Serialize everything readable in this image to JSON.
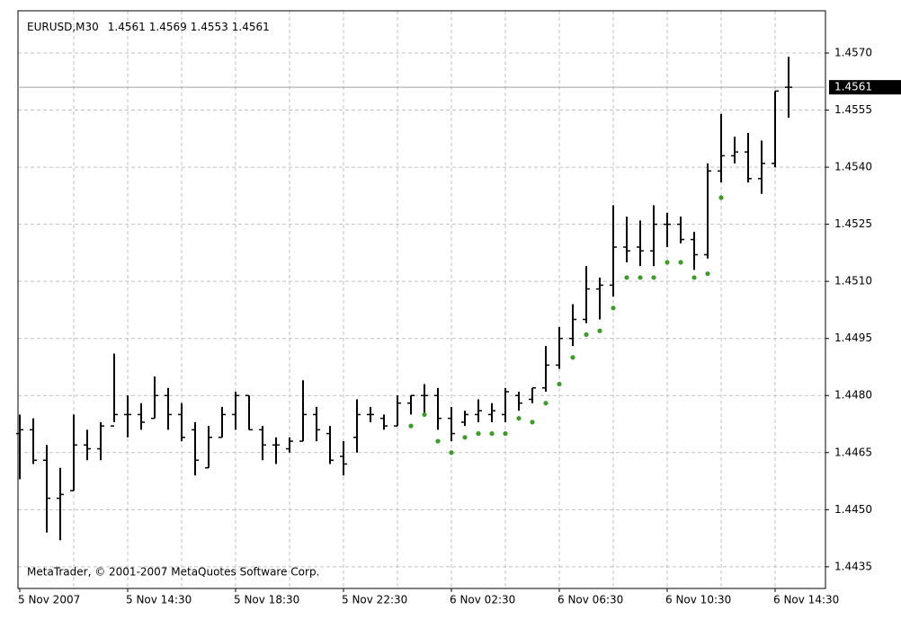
{
  "chart_data": {
    "type": "ohlc",
    "title": "EURUSD,M30",
    "header_values": [
      1.4561,
      1.4569,
      1.4553,
      1.4561
    ],
    "categories": [
      "5 Nov 2007",
      null,
      null,
      null,
      null,
      null,
      null,
      null,
      "5 Nov 14:30",
      null,
      null,
      null,
      null,
      null,
      null,
      null,
      "5 Nov 18:30",
      null,
      null,
      null,
      null,
      null,
      null,
      null,
      "5 Nov 22:30",
      null,
      null,
      null,
      null,
      null,
      null,
      null,
      "6 Nov 02:30",
      null,
      null,
      null,
      null,
      null,
      null,
      null,
      "6 Nov 06:30",
      null,
      null,
      null,
      null,
      null,
      null,
      null,
      "6 Nov 10:30",
      null,
      null,
      null,
      null,
      null,
      null,
      null,
      "6 Nov 14:30",
      null
    ],
    "open": [
      1.447,
      1.4471,
      1.4463,
      1.4453,
      1.4455,
      1.4467,
      1.4466,
      1.4472,
      1.4475,
      1.4475,
      1.4474,
      1.448,
      1.4475,
      1.4471,
      1.4461,
      1.4469,
      1.4475,
      1.448,
      1.4471,
      1.4467,
      1.4466,
      1.4468,
      1.4475,
      1.447,
      1.4464,
      1.4469,
      1.4475,
      1.4474,
      1.4472,
      1.4478,
      1.448,
      1.448,
      1.4474,
      1.4473,
      1.4475,
      1.4475,
      1.4475,
      1.448,
      1.4479,
      1.4482,
      1.4488,
      1.4495,
      1.45,
      1.4508,
      1.4509,
      1.4519,
      1.4519,
      1.4518,
      1.4525,
      1.4525,
      1.4521,
      1.4517,
      1.4539,
      1.4543,
      1.4544,
      1.4537,
      1.4541,
      1.4561
    ],
    "high": [
      1.4475,
      1.4474,
      1.4467,
      1.4461,
      1.4475,
      1.4471,
      1.4473,
      1.4491,
      1.448,
      1.4478,
      1.4485,
      1.4482,
      1.4478,
      1.4473,
      1.4472,
      1.4477,
      1.4481,
      1.448,
      1.4472,
      1.4469,
      1.4469,
      1.4484,
      1.4477,
      1.4472,
      1.4468,
      1.4479,
      1.4477,
      1.4475,
      1.448,
      1.448,
      1.4483,
      1.4482,
      1.4477,
      1.4476,
      1.4479,
      1.4478,
      1.4482,
      1.4481,
      1.4482,
      1.4493,
      1.4498,
      1.4504,
      1.4514,
      1.4511,
      1.453,
      1.4527,
      1.4526,
      1.453,
      1.4528,
      1.4527,
      1.4523,
      1.4541,
      1.4554,
      1.4548,
      1.4549,
      1.4547,
      1.456,
      1.4569
    ],
    "low": [
      1.4458,
      1.4462,
      1.4444,
      1.4442,
      1.4455,
      1.4463,
      1.4463,
      1.4473,
      1.4469,
      1.4471,
      1.4474,
      1.4471,
      1.4468,
      1.4459,
      1.4461,
      1.4469,
      1.4471,
      1.4471,
      1.4463,
      1.4462,
      1.4465,
      1.4468,
      1.4468,
      1.4462,
      1.4459,
      1.4465,
      1.4473,
      1.4471,
      1.4472,
      1.4475,
      1.4475,
      1.4471,
      1.4468,
      1.4472,
      1.4473,
      1.4473,
      1.4473,
      1.4476,
      1.4478,
      1.4481,
      1.4487,
      1.4493,
      1.4499,
      1.45,
      1.4506,
      1.4515,
      1.4514,
      1.4514,
      1.4519,
      1.452,
      1.4513,
      1.4516,
      1.4536,
      1.4541,
      1.4536,
      1.4533,
      1.454,
      1.4553
    ],
    "close": [
      1.4471,
      1.4463,
      1.4453,
      1.4454,
      1.4467,
      1.4466,
      1.4472,
      1.4475,
      1.4475,
      1.4473,
      1.448,
      1.4475,
      1.4469,
      1.4463,
      1.4469,
      1.4475,
      1.448,
      1.4471,
      1.4467,
      1.4467,
      1.4468,
      1.4475,
      1.4471,
      1.4463,
      1.4462,
      1.4475,
      1.4475,
      1.4472,
      1.4478,
      1.448,
      1.448,
      1.4474,
      1.447,
      1.4475,
      1.4476,
      1.4476,
      1.4481,
      1.4478,
      1.4482,
      1.4488,
      1.4495,
      1.45,
      1.4508,
      1.4509,
      1.4519,
      1.4518,
      1.4518,
      1.4525,
      1.4525,
      1.4521,
      1.4517,
      1.4539,
      1.4543,
      1.4544,
      1.4537,
      1.4541,
      1.456,
      1.4561
    ],
    "color": "#000000",
    "indicator": {
      "color": "#3f9a2c",
      "values": [
        null,
        null,
        null,
        null,
        null,
        null,
        null,
        null,
        null,
        null,
        null,
        null,
        null,
        null,
        null,
        null,
        null,
        null,
        null,
        null,
        null,
        null,
        null,
        null,
        null,
        null,
        null,
        null,
        null,
        1.4472,
        1.4475,
        1.4468,
        1.4465,
        1.4469,
        1.447,
        1.447,
        1.447,
        1.4474,
        1.4473,
        1.4478,
        1.4483,
        1.449,
        1.4496,
        1.4497,
        1.4503,
        1.4511,
        1.4511,
        1.4511,
        1.4515,
        1.4515,
        1.4511,
        1.4512,
        1.4532,
        null,
        null,
        null,
        null,
        null
      ]
    },
    "ylim": [
      1.44293,
      1.45811
    ],
    "yticks": [
      {
        "value": 1.4435,
        "label": "1.4435"
      },
      {
        "value": 1.445,
        "label": "1.4450"
      },
      {
        "value": 1.4465,
        "label": "1.4465"
      },
      {
        "value": 1.448,
        "label": "1.4480"
      },
      {
        "value": 1.4495,
        "label": "1.4495"
      },
      {
        "value": 1.451,
        "label": "1.4510"
      },
      {
        "value": 1.4525,
        "label": "1.4525"
      },
      {
        "value": 1.454,
        "label": "1.4540"
      },
      {
        "value": 1.4555,
        "label": "1.4555"
      },
      {
        "value": 1.457,
        "label": "1.4570"
      }
    ],
    "current_price": 1.4561,
    "grid": true,
    "footer": "MetaTrader, © 2001-2007 MetaQuotes Software Corp."
  }
}
